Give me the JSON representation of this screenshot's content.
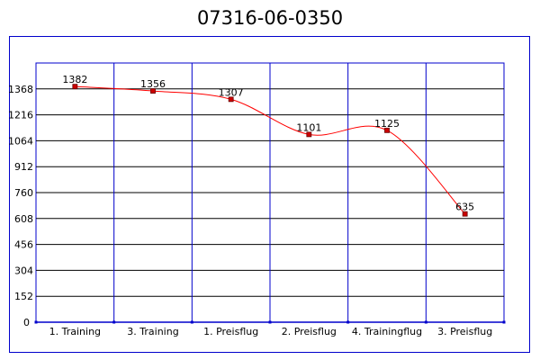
{
  "chart_data": {
    "type": "line",
    "title": "07316-06-0350",
    "categories": [
      "1. Training",
      "3. Training",
      "1. Preisflug",
      "2. Preisflug",
      "4. Trainingflug",
      "3. Preisflug"
    ],
    "values": [
      1382,
      1356,
      1307,
      1101,
      1125,
      635
    ],
    "y_ticks": [
      0,
      152,
      304,
      456,
      608,
      760,
      912,
      1064,
      1216,
      1368
    ],
    "ylim": [
      0,
      1520
    ],
    "grid": true,
    "smooth": true,
    "colors": {
      "grid": "#0000cc",
      "horizontal_grid": "#000000",
      "line": "#ff0000",
      "marker_fill": "#cc0000",
      "marker_stroke": "#660000"
    }
  }
}
